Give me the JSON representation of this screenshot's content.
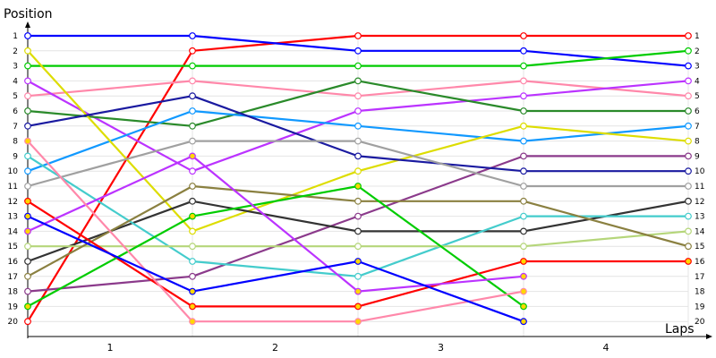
{
  "chart_data": {
    "type": "line",
    "title": "",
    "ylabel": "Position",
    "xlabel": "Laps",
    "x": [
      0,
      1,
      2,
      3,
      4
    ],
    "x_tick_labels": [
      "1",
      "2",
      "3",
      "4"
    ],
    "y_ticks": [
      1,
      2,
      3,
      4,
      5,
      6,
      7,
      8,
      9,
      10,
      11,
      12,
      13,
      14,
      15,
      16,
      17,
      18,
      19,
      20
    ],
    "ylim": [
      1,
      20
    ],
    "y_inverted": true,
    "grid": true,
    "series": [
      {
        "color": "#ff0000",
        "values": [
          20,
          2,
          1,
          1,
          1
        ],
        "marker_fill": "#ffffff"
      },
      {
        "color": "#0000ff",
        "values": [
          1,
          1,
          2,
          2,
          3
        ],
        "marker_fill": "#ffffff"
      },
      {
        "color": "#00cc00",
        "values": [
          3,
          3,
          3,
          3,
          2
        ],
        "marker_fill": "#ffffff"
      },
      {
        "color": "#ff88aa",
        "values": [
          5,
          4,
          5,
          4,
          5
        ],
        "marker_fill": "#ffffff"
      },
      {
        "color": "#bb33ff",
        "values": [
          4,
          10,
          6,
          5,
          4
        ],
        "marker_fill": "#ffffff"
      },
      {
        "color": "#2a8a2a",
        "values": [
          6,
          7,
          4,
          6,
          6
        ],
        "marker_fill": "#ffffff"
      },
      {
        "color": "#1199ff",
        "values": [
          10,
          6,
          7,
          8,
          7
        ],
        "marker_fill": "#ffffff"
      },
      {
        "color": "#dddd00",
        "values": [
          2,
          14,
          10,
          7,
          8
        ],
        "marker_fill": "#ffffff"
      },
      {
        "color": "#8b3a8b",
        "values": [
          18,
          17,
          13,
          9,
          9
        ],
        "marker_fill": "#ffffff"
      },
      {
        "color": "#1a1aa0",
        "values": [
          7,
          5,
          9,
          10,
          10
        ],
        "marker_fill": "#ffffff"
      },
      {
        "color": "#a0a0a0",
        "values": [
          11,
          8,
          8,
          11,
          11
        ],
        "marker_fill": "#ffffff"
      },
      {
        "color": "#333333",
        "values": [
          16,
          12,
          14,
          14,
          12
        ],
        "marker_fill": "#ffffff"
      },
      {
        "color": "#44cccc",
        "values": [
          9,
          16,
          17,
          13,
          13
        ],
        "marker_fill": "#ffffff"
      },
      {
        "color": "#b5d67a",
        "values": [
          15,
          15,
          15,
          15,
          14
        ],
        "marker_fill": "#ffffff"
      },
      {
        "color": "#8a8040",
        "values": [
          17,
          11,
          12,
          12,
          15
        ],
        "marker_fill": "#ffffff"
      },
      {
        "color": "#ff0000",
        "values": [
          12,
          19,
          19,
          16,
          16
        ],
        "marker_fill": "#ffd700"
      },
      {
        "color": "#00cc00",
        "values": [
          19,
          13,
          11,
          19,
          null
        ],
        "marker_fill": "#ffd700"
      },
      {
        "color": "#bb33ff",
        "values": [
          14,
          9,
          18,
          17,
          null
        ],
        "marker_fill": "#ffd700"
      },
      {
        "color": "#ff88aa",
        "values": [
          8,
          20,
          20,
          18,
          null
        ],
        "marker_fill": "#ffd700"
      },
      {
        "color": "#0000ff",
        "values": [
          13,
          18,
          16,
          20,
          null
        ],
        "marker_fill": "#ffd700"
      }
    ]
  }
}
